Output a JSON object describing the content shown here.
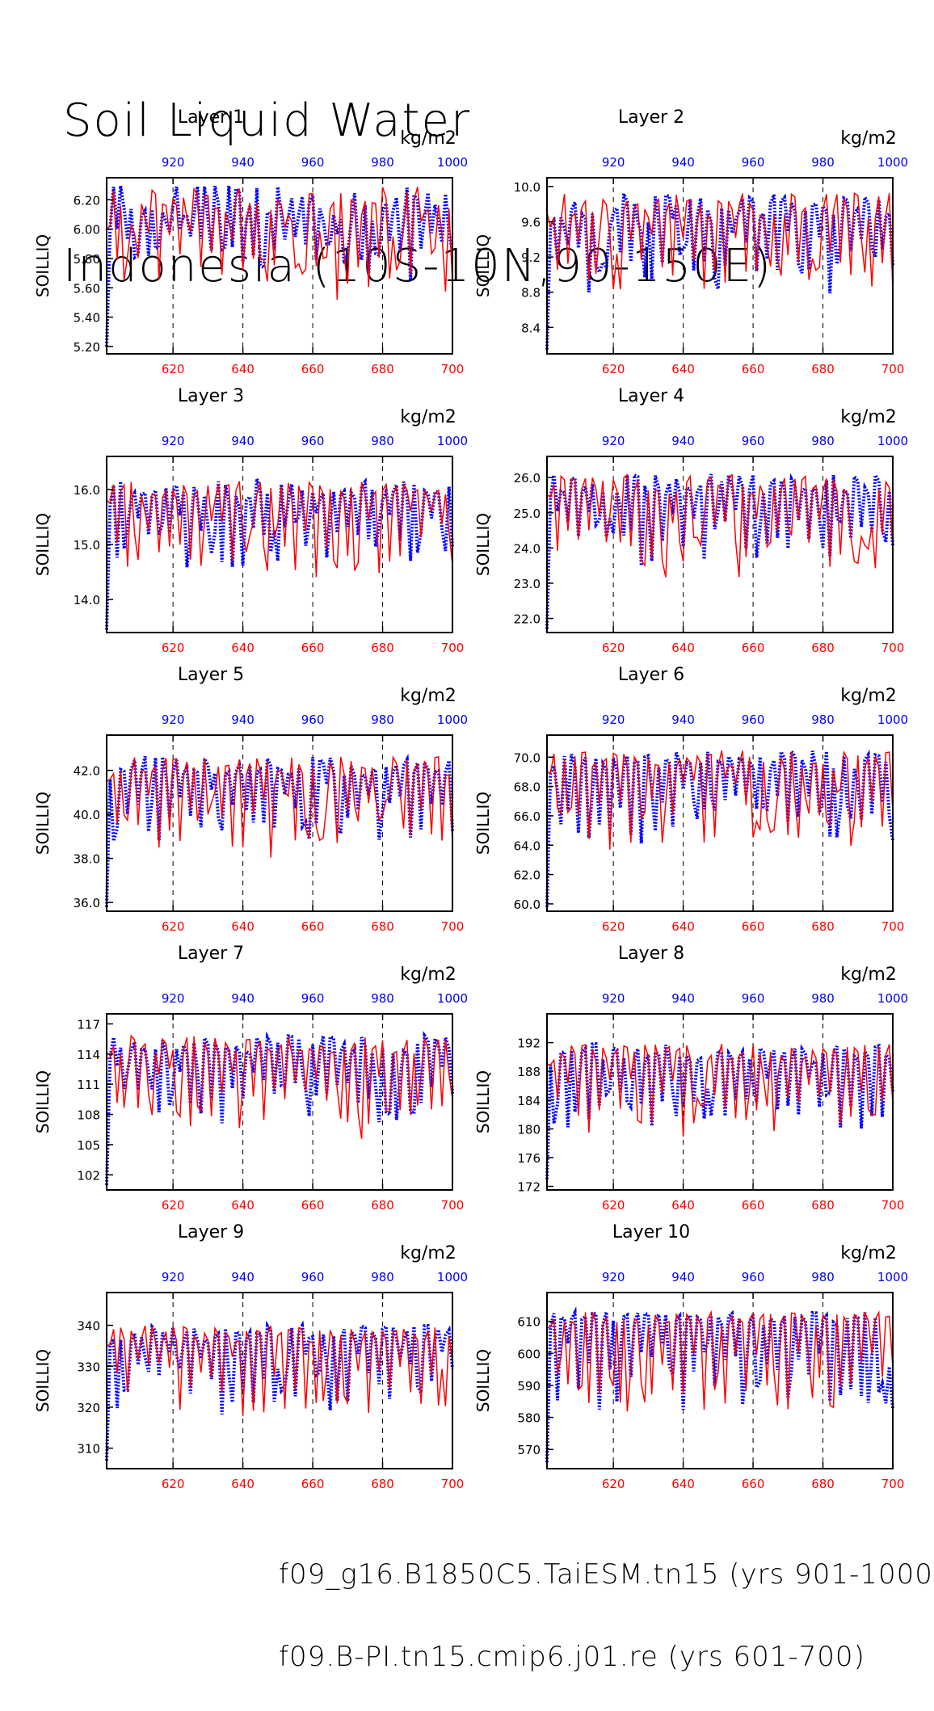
{
  "title_lines": [
    "Soil Liquid Water",
    "Indonesia (10S-10N,90-150E)"
  ],
  "legend": [
    {
      "label": "f09_g16.B1850C5.TaiESM.tn15 (yrs 901-1000)",
      "color": "#0000ff",
      "style": "dashed"
    },
    {
      "label": "f09.B-PI.tn15.cmip6.j01.re (yrs 601-700)",
      "color": "#ff0000",
      "style": "solid"
    }
  ],
  "chart_data": [
    {
      "type": "line",
      "title": "Layer 1",
      "ylabel": "SOILLIQ",
      "unit_label": "kg/m2",
      "yticks": [
        "5.20",
        "5.40",
        "5.60",
        "5.80",
        "6.00",
        "6.20"
      ],
      "ylim": [
        5.15,
        6.35
      ],
      "xlim_bottom": [
        601,
        700
      ],
      "xticks_bottom": [
        "620",
        "640",
        "660",
        "680",
        "700"
      ],
      "xlim_top": [
        901,
        1000
      ],
      "xticks_top": [
        "920",
        "940",
        "960",
        "980",
        "1000"
      ],
      "series": [
        {
          "name": "f09_g16.B1850C5.TaiESM.tn15 (yrs 901-1000)",
          "axis": "top",
          "color": "#0000ff",
          "start": 5.2,
          "mean": 6.12,
          "amp": 0.22,
          "dip": 0.45
        },
        {
          "name": "f09.B-PI.tn15.cmip6.j01.re (yrs 601-700)",
          "axis": "bottom",
          "color": "#ff0000",
          "start": 6.0,
          "mean": 6.12,
          "amp": 0.2,
          "dip": 0.55
        }
      ]
    },
    {
      "type": "line",
      "title": "Layer 2",
      "ylabel": "SOILLIQ",
      "unit_label": "kg/m2",
      "yticks": [
        "8.4",
        "8.8",
        "9.2",
        "9.6",
        "10.0"
      ],
      "ylim": [
        8.1,
        10.1
      ],
      "xlim_bottom": [
        601,
        700
      ],
      "xticks_bottom": [
        "620",
        "640",
        "660",
        "680",
        "700"
      ],
      "xlim_top": [
        901,
        1000
      ],
      "xticks_top": [
        "920",
        "940",
        "960",
        "980",
        "1000"
      ],
      "series": [
        {
          "name": "f09_g16.B1850C5.TaiESM.tn15 (yrs 901-1000)",
          "axis": "top",
          "color": "#0000ff",
          "start": 8.15,
          "mean": 9.7,
          "amp": 0.3,
          "dip": 0.9
        },
        {
          "name": "f09.B-PI.tn15.cmip6.j01.re (yrs 601-700)",
          "axis": "bottom",
          "color": "#ff0000",
          "start": 9.7,
          "mean": 9.7,
          "amp": 0.3,
          "dip": 1.0
        }
      ]
    },
    {
      "type": "line",
      "title": "Layer 3",
      "ylabel": "SOILLIQ",
      "unit_label": "kg/m2",
      "yticks": [
        "14.0",
        "15.0",
        "16.0"
      ],
      "ylim": [
        13.4,
        16.6
      ],
      "xlim_bottom": [
        601,
        700
      ],
      "xticks_bottom": [
        "620",
        "640",
        "660",
        "680",
        "700"
      ],
      "xlim_top": [
        901,
        1000
      ],
      "xticks_top": [
        "920",
        "940",
        "960",
        "980",
        "1000"
      ],
      "series": [
        {
          "name": "f09_g16.B1850C5.TaiESM.tn15 (yrs 901-1000)",
          "axis": "top",
          "color": "#0000ff",
          "start": 13.45,
          "mean": 15.9,
          "amp": 0.35,
          "dip": 1.3
        },
        {
          "name": "f09.B-PI.tn15.cmip6.j01.re (yrs 601-700)",
          "axis": "bottom",
          "color": "#ff0000",
          "start": 15.8,
          "mean": 15.9,
          "amp": 0.3,
          "dip": 1.5
        }
      ]
    },
    {
      "type": "line",
      "title": "Layer 4",
      "ylabel": "SOILLIQ",
      "unit_label": "kg/m2",
      "yticks": [
        "22.0",
        "23.0",
        "24.0",
        "25.0",
        "26.0"
      ],
      "ylim": [
        21.6,
        26.6
      ],
      "xlim_bottom": [
        601,
        700
      ],
      "xticks_bottom": [
        "620",
        "640",
        "660",
        "680",
        "700"
      ],
      "xlim_top": [
        901,
        1000
      ],
      "xticks_top": [
        "920",
        "940",
        "960",
        "980",
        "1000"
      ],
      "series": [
        {
          "name": "f09_g16.B1850C5.TaiESM.tn15 (yrs 901-1000)",
          "axis": "top",
          "color": "#0000ff",
          "start": 21.7,
          "mean": 25.7,
          "amp": 0.5,
          "dip": 2.2
        },
        {
          "name": "f09.B-PI.tn15.cmip6.j01.re (yrs 601-700)",
          "axis": "bottom",
          "color": "#ff0000",
          "start": 25.5,
          "mean": 25.7,
          "amp": 0.5,
          "dip": 2.5
        }
      ]
    },
    {
      "type": "line",
      "title": "Layer 5",
      "ylabel": "SOILLIQ",
      "unit_label": "kg/m2",
      "yticks": [
        "36.0",
        "38.0",
        "40.0",
        "42.0"
      ],
      "ylim": [
        35.6,
        43.6
      ],
      "xlim_bottom": [
        601,
        700
      ],
      "xticks_bottom": [
        "620",
        "640",
        "660",
        "680",
        "700"
      ],
      "xlim_top": [
        901,
        1000
      ],
      "xticks_top": [
        "920",
        "940",
        "960",
        "980",
        "1000"
      ],
      "series": [
        {
          "name": "f09_g16.B1850C5.TaiESM.tn15 (yrs 901-1000)",
          "axis": "top",
          "color": "#0000ff",
          "start": 35.8,
          "mean": 42.0,
          "amp": 0.8,
          "dip": 3.5
        },
        {
          "name": "f09.B-PI.tn15.cmip6.j01.re (yrs 601-700)",
          "axis": "bottom",
          "color": "#ff0000",
          "start": 41.5,
          "mean": 42.0,
          "amp": 0.8,
          "dip": 4.0
        }
      ]
    },
    {
      "type": "line",
      "title": "Layer 6",
      "ylabel": "SOILLIQ",
      "unit_label": "kg/m2",
      "yticks": [
        "60.0",
        "62.0",
        "64.0",
        "66.0",
        "68.0",
        "70.0"
      ],
      "ylim": [
        59.5,
        71.5
      ],
      "xlim_bottom": [
        601,
        700
      ],
      "xticks_bottom": [
        "620",
        "640",
        "660",
        "680",
        "700"
      ],
      "xlim_top": [
        901,
        1000
      ],
      "xticks_top": [
        "920",
        "940",
        "960",
        "980",
        "1000"
      ],
      "series": [
        {
          "name": "f09_g16.B1850C5.TaiESM.tn15 (yrs 901-1000)",
          "axis": "top",
          "color": "#0000ff",
          "start": 59.8,
          "mean": 69.5,
          "amp": 1.2,
          "dip": 5.5
        },
        {
          "name": "f09.B-PI.tn15.cmip6.j01.re (yrs 601-700)",
          "axis": "bottom",
          "color": "#ff0000",
          "start": 69.0,
          "mean": 69.5,
          "amp": 1.2,
          "dip": 6.0
        }
      ]
    },
    {
      "type": "line",
      "title": "Layer 7",
      "ylabel": "SOILLIQ",
      "unit_label": "kg/m2",
      "yticks": [
        "102",
        "105",
        "108",
        "111",
        "114",
        "117"
      ],
      "ylim": [
        100.5,
        118
      ],
      "xlim_bottom": [
        601,
        700
      ],
      "xticks_bottom": [
        "620",
        "640",
        "660",
        "680",
        "700"
      ],
      "xlim_top": [
        901,
        1000
      ],
      "xticks_top": [
        "920",
        "940",
        "960",
        "980",
        "1000"
      ],
      "series": [
        {
          "name": "f09_g16.B1850C5.TaiESM.tn15 (yrs 901-1000)",
          "axis": "top",
          "color": "#0000ff",
          "start": 101,
          "mean": 114.5,
          "amp": 1.6,
          "dip": 7.5
        },
        {
          "name": "f09.B-PI.tn15.cmip6.j01.re (yrs 601-700)",
          "axis": "bottom",
          "color": "#ff0000",
          "start": 113.5,
          "mean": 114.5,
          "amp": 1.6,
          "dip": 8.5
        }
      ]
    },
    {
      "type": "line",
      "title": "Layer 8",
      "ylabel": "SOILLIQ",
      "unit_label": "kg/m2",
      "yticks": [
        "172",
        "176",
        "180",
        "184",
        "188",
        "192"
      ],
      "ylim": [
        171.5,
        196
      ],
      "xlim_bottom": [
        601,
        700
      ],
      "xticks_bottom": [
        "620",
        "640",
        "660",
        "680",
        "700"
      ],
      "xlim_top": [
        901,
        1000
      ],
      "xticks_top": [
        "920",
        "940",
        "960",
        "980",
        "1000"
      ],
      "series": [
        {
          "name": "f09_g16.B1850C5.TaiESM.tn15 (yrs 901-1000)",
          "axis": "top",
          "color": "#0000ff",
          "start": 173,
          "mean": 190,
          "amp": 2.2,
          "dip": 10
        },
        {
          "name": "f09.B-PI.tn15.cmip6.j01.re (yrs 601-700)",
          "axis": "bottom",
          "color": "#ff0000",
          "start": 189,
          "mean": 190,
          "amp": 2.2,
          "dip": 11
        }
      ]
    },
    {
      "type": "line",
      "title": "Layer 9",
      "ylabel": "SOILLIQ",
      "unit_label": "kg/m2",
      "yticks": [
        "310",
        "320",
        "330",
        "340"
      ],
      "ylim": [
        305,
        348
      ],
      "xlim_bottom": [
        601,
        700
      ],
      "xticks_bottom": [
        "620",
        "640",
        "660",
        "680",
        "700"
      ],
      "xlim_top": [
        901,
        1000
      ],
      "xticks_top": [
        "920",
        "940",
        "960",
        "980",
        "1000"
      ],
      "series": [
        {
          "name": "f09_g16.B1850C5.TaiESM.tn15 (yrs 901-1000)",
          "axis": "top",
          "color": "#0000ff",
          "start": 307,
          "mean": 337,
          "amp": 3.5,
          "dip": 18
        },
        {
          "name": "f09.B-PI.tn15.cmip6.j01.re (yrs 601-700)",
          "axis": "bottom",
          "color": "#ff0000",
          "start": 335,
          "mean": 337,
          "amp": 3.5,
          "dip": 20
        }
      ]
    },
    {
      "type": "line",
      "title": "Layer 10",
      "ylabel": "SOILLIQ",
      "unit_label": "kg/m2",
      "yticks": [
        "570",
        "580",
        "590",
        "600",
        "610"
      ],
      "ylim": [
        564,
        619
      ],
      "xlim_bottom": [
        601,
        700
      ],
      "xticks_bottom": [
        "620",
        "640",
        "660",
        "680",
        "700"
      ],
      "xlim_top": [
        901,
        1000
      ],
      "xticks_top": [
        "920",
        "940",
        "960",
        "980",
        "1000"
      ],
      "series": [
        {
          "name": "f09_g16.B1850C5.TaiESM.tn15 (yrs 901-1000)",
          "axis": "top",
          "color": "#0000ff",
          "start": 566,
          "mean": 610,
          "amp": 3.5,
          "dip": 28
        },
        {
          "name": "f09.B-PI.tn15.cmip6.j01.re (yrs 601-700)",
          "axis": "bottom",
          "color": "#ff0000",
          "start": 608,
          "mean": 610,
          "amp": 3.5,
          "dip": 30
        }
      ]
    }
  ]
}
